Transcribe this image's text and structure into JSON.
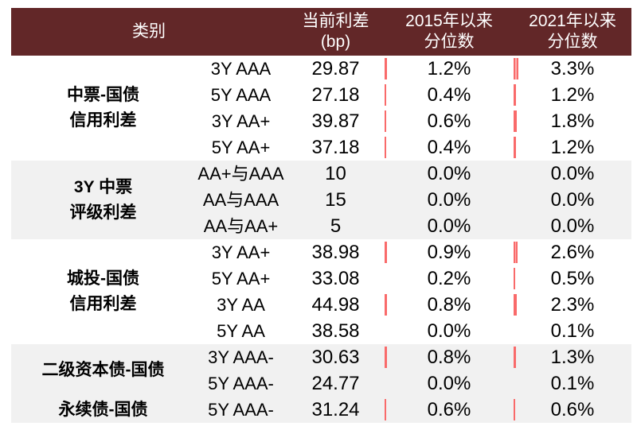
{
  "colors": {
    "header_bg": "#622728",
    "band_gray": "#F1F1F1",
    "bar_red": "#F96A6A",
    "header_text": "#FFFFFF",
    "body_text": "#000000"
  },
  "header": {
    "category": "类别",
    "value_line1": "当前利差",
    "value_line2": "(bp)",
    "p2015_line1": "2015年以来",
    "p2015_line2": "分位数",
    "p2021_line1": "2021年以来",
    "p2021_line2": "分位数"
  },
  "chart_data": {
    "type": "table",
    "columns": [
      "类别",
      "当前利差 (bp)",
      "2015年以来 分位数",
      "2021年以来 分位数"
    ],
    "bar_note": "red data bars at left edge of percentile cells, width proportional to value",
    "groups": [
      {
        "label": [
          "中票-国债",
          "信用利差"
        ],
        "shade": "white",
        "rows": [
          {
            "item": "3Y AAA",
            "value": "29.87",
            "p2015": "1.2%",
            "p2021": "3.3%"
          },
          {
            "item": "5Y AAA",
            "value": "27.18",
            "p2015": "0.4%",
            "p2021": "1.2%"
          },
          {
            "item": "3Y AA+",
            "value": "39.87",
            "p2015": "0.6%",
            "p2021": "1.8%"
          },
          {
            "item": "5Y AA+",
            "value": "37.18",
            "p2015": "0.4%",
            "p2021": "1.2%"
          }
        ]
      },
      {
        "label": [
          "3Y 中票",
          "评级利差"
        ],
        "shade": "gray",
        "rows": [
          {
            "item": "AA+与AAA",
            "value": "10",
            "p2015": "0.0%",
            "p2021": "0.0%"
          },
          {
            "item": "AA与AAA",
            "value": "15",
            "p2015": "0.0%",
            "p2021": "0.0%"
          },
          {
            "item": "AA与AA+",
            "value": "5",
            "p2015": "0.0%",
            "p2021": "0.0%"
          }
        ]
      },
      {
        "label": [
          "城投-国债",
          "信用利差"
        ],
        "shade": "white",
        "rows": [
          {
            "item": "3Y AA+",
            "value": "38.98",
            "p2015": "0.9%",
            "p2021": "2.6%"
          },
          {
            "item": "5Y AA+",
            "value": "33.08",
            "p2015": "0.2%",
            "p2021": "0.5%"
          },
          {
            "item": "3Y AA",
            "value": "44.98",
            "p2015": "0.8%",
            "p2021": "2.3%"
          },
          {
            "item": "5Y AA",
            "value": "38.58",
            "p2015": "0.0%",
            "p2021": "0.1%"
          }
        ]
      },
      {
        "label": [
          "二级资本债-国债"
        ],
        "shade": "gray",
        "rows": [
          {
            "item": "3Y AAA-",
            "value": "30.63",
            "p2015": "0.8%",
            "p2021": "1.3%"
          },
          {
            "item": "5Y AAA-",
            "value": "24.77",
            "p2015": "0.0%",
            "p2021": "0.1%"
          }
        ]
      },
      {
        "label": [
          "永续债-国债"
        ],
        "shade": "gray",
        "rows": [
          {
            "item": "5Y AAA-",
            "value": "31.24",
            "p2015": "0.6%",
            "p2021": "0.6%"
          }
        ]
      }
    ]
  }
}
